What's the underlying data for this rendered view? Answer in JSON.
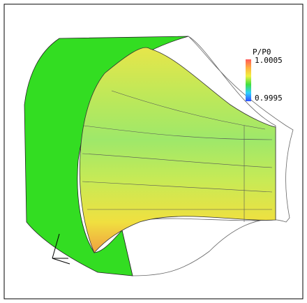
{
  "colorbar": {
    "title": "P/P0",
    "max_label": "1.0005",
    "min_label": "0.9995"
  }
}
